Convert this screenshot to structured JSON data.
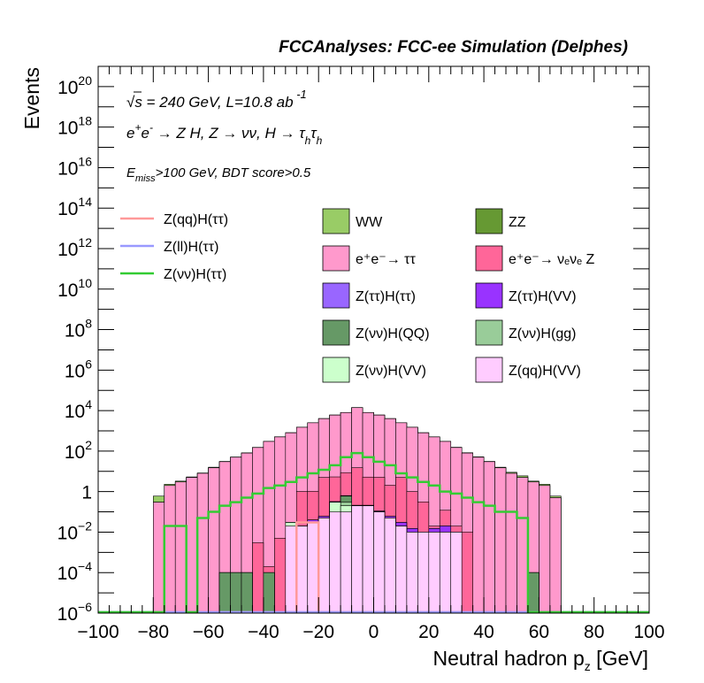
{
  "header": {
    "title": "FCCAnalyses: FCC-ee Simulation (Delphes)"
  },
  "chart_data": {
    "type": "histogram",
    "title": "FCCAnalyses: FCC-ee Simulation (Delphes)",
    "xlabel": "Neutral hadron p_z [GeV]",
    "ylabel": "Events",
    "xlim": [
      -100,
      100
    ],
    "ylim": [
      1e-06,
      1e+21
    ],
    "ylog": true,
    "grid": false,
    "legend_position": "top",
    "x_ticks": [
      "−100",
      "−80",
      "−60",
      "−40",
      "−20",
      "0",
      "20",
      "40",
      "60",
      "80",
      "100"
    ],
    "y_ticks": [
      {
        "base": "10",
        "exp": "−6",
        "v": 1e-06
      },
      {
        "base": "10",
        "exp": "−4",
        "v": 0.0001
      },
      {
        "base": "10",
        "exp": "−2",
        "v": 0.01
      },
      {
        "base": "1",
        "exp": "",
        "v": 1
      },
      {
        "base": "10",
        "exp": "2",
        "v": 100.0
      },
      {
        "base": "10",
        "exp": "4",
        "v": 10000.0
      },
      {
        "base": "10",
        "exp": "6",
        "v": 1000000.0
      },
      {
        "base": "10",
        "exp": "8",
        "v": 100000000.0
      },
      {
        "base": "10",
        "exp": "10",
        "v": 10000000000.0
      },
      {
        "base": "10",
        "exp": "12",
        "v": 1000000000000.0
      },
      {
        "base": "10",
        "exp": "14",
        "v": 100000000000000.0
      },
      {
        "base": "10",
        "exp": "16",
        "v": 1e+16
      },
      {
        "base": "10",
        "exp": "18",
        "v": 1e+18
      },
      {
        "base": "10",
        "exp": "20",
        "v": 1e+20
      }
    ],
    "annotations": {
      "energy": "√s = 240 GeV, L=10.8 ab⁻¹",
      "process": "e⁺e⁻ → Z H, Z → νν, H → τhτh",
      "cuts": "E_miss>100 GeV, BDT score>0.5"
    },
    "bins": {
      "start": -80,
      "width": 4,
      "count": 37
    },
    "stack": [
      {
        "name": "Z(qq)H(VV)",
        "color": "#ffccff",
        "values": [
          0,
          0,
          0,
          0,
          0,
          0,
          0,
          0,
          0,
          0,
          0,
          0,
          0.02,
          0.02,
          0.03,
          0.05,
          0.1,
          0.1,
          0.2,
          0.2,
          0.1,
          0.05,
          0.02,
          0.01,
          0.01,
          0.01,
          0.01,
          0.01,
          1e-06,
          0,
          0,
          0,
          0,
          0,
          0,
          0,
          0
        ]
      },
      {
        "name": "Z(νν)H(VV)",
        "color": "#ccffcc",
        "values": [
          0,
          0,
          0,
          0,
          0,
          0,
          0,
          0,
          0,
          0,
          0,
          0,
          0.01,
          0,
          0,
          0,
          0.2,
          0.1,
          0,
          0,
          0,
          0,
          0,
          0,
          0,
          0,
          0,
          0,
          0,
          0,
          0,
          0,
          0,
          0,
          0,
          0,
          0
        ]
      },
      {
        "name": "Z(νν)H(gg)",
        "color": "#99cc99",
        "values": [
          0,
          0,
          0,
          0,
          0,
          0,
          0,
          0,
          0,
          0,
          0,
          0,
          0,
          0,
          0,
          0,
          0,
          0.1,
          0,
          0,
          0,
          0,
          0,
          0,
          0,
          0,
          0,
          0,
          0,
          0,
          0,
          0,
          0,
          0,
          0,
          0,
          0
        ]
      },
      {
        "name": "Z(νν)H(QQ)",
        "color": "#669966",
        "values": [
          0,
          0,
          0,
          0,
          0,
          0,
          0.0001,
          0.0001,
          0.0001,
          0,
          0.0001,
          0,
          0,
          0,
          0,
          0,
          0,
          0.3,
          0,
          0,
          0,
          0,
          0,
          0,
          0,
          0,
          0,
          0,
          0,
          0,
          0,
          0,
          0,
          0,
          0.0001,
          0,
          0
        ]
      },
      {
        "name": "Z(ττ)H(VV)",
        "color": "#9933ff",
        "values": [
          0,
          0,
          0,
          0,
          0,
          0,
          0,
          0,
          0,
          0,
          0,
          0,
          0,
          0,
          0.01,
          0.01,
          0.02,
          0.03,
          0.01,
          0.01,
          0.01,
          0.01,
          0.01,
          0.005,
          0,
          0.005,
          0.01,
          0,
          0,
          0,
          0,
          0,
          0,
          0,
          0,
          0,
          0
        ]
      },
      {
        "name": "Z(ττ)H(ττ)",
        "color": "#9966ff",
        "values": [
          0,
          0,
          0,
          0,
          0,
          0,
          0,
          0,
          0,
          0,
          0,
          0,
          0,
          0,
          0,
          0,
          0,
          0,
          0,
          0,
          0,
          0,
          0,
          0,
          0,
          0,
          0,
          0,
          0,
          0,
          0,
          0,
          0,
          0,
          0,
          0,
          0
        ]
      },
      {
        "name": "e⁺e⁻→ νₑνₑ Z",
        "color": "#ff6699",
        "values": [
          0,
          0,
          0,
          0,
          0,
          0,
          0,
          0,
          0,
          0.003,
          0.0001,
          0.005,
          0,
          1,
          1,
          5,
          5,
          8,
          15,
          5,
          5,
          2,
          5,
          1,
          0.3,
          0.005,
          0.1,
          0.01,
          0.01,
          0,
          0,
          0,
          0,
          0,
          0,
          0,
          0
        ]
      },
      {
        "name": "e⁺e⁻→ ττ",
        "color": "#ff99cc",
        "values": [
          0.3,
          2,
          3,
          5,
          8,
          15,
          30,
          50,
          80,
          150,
          300,
          500,
          800,
          1500,
          2500,
          4000,
          6000,
          8000,
          14000,
          8000,
          6000,
          4000,
          2500,
          1500,
          800,
          500,
          300,
          150,
          80,
          50,
          30,
          15,
          8,
          5,
          3,
          2,
          0.5
        ]
      },
      {
        "name": "ZZ",
        "color": "#669933",
        "values": [
          0,
          0,
          0,
          0,
          0.0001,
          0.0001,
          0.001,
          0.03,
          0.1,
          0.3,
          0.5,
          2,
          4,
          6,
          8,
          10,
          12,
          15,
          10,
          12,
          6,
          5,
          3,
          2,
          1,
          0.3,
          0.1,
          0,
          0,
          0,
          0,
          0,
          0,
          0.0001,
          0,
          0,
          0
        ]
      },
      {
        "name": "WW",
        "color": "#99cc66",
        "values": [
          0.3,
          0.3,
          0.3,
          0.3,
          0.3,
          1,
          1,
          1,
          2,
          3,
          5,
          8,
          8,
          15,
          20,
          30,
          40,
          70,
          100,
          70,
          50,
          35,
          20,
          15,
          10,
          8,
          5,
          5,
          3,
          2,
          1,
          1,
          1,
          1,
          0.3,
          0.3,
          0.1
        ]
      }
    ],
    "legend": [
      {
        "name": "WW",
        "color": "#99cc66"
      },
      {
        "name": "ZZ",
        "color": "#669933"
      },
      {
        "name": "e⁺e⁻→ ττ",
        "color": "#ff99cc"
      },
      {
        "name": "e⁺e⁻→ νₑνₑ Z",
        "color": "#ff6699"
      },
      {
        "name": "Z(ττ)H(ττ)",
        "color": "#9966ff"
      },
      {
        "name": "Z(ττ)H(VV)",
        "color": "#9933ff"
      },
      {
        "name": "Z(νν)H(QQ)",
        "color": "#669966"
      },
      {
        "name": "Z(νν)H(gg)",
        "color": "#99cc99"
      },
      {
        "name": "Z(νν)H(VV)",
        "color": "#ccffcc"
      },
      {
        "name": "Z(qq)H(VV)",
        "color": "#ffccff"
      }
    ],
    "signals": [
      {
        "name": "Z(qq)H(ττ)",
        "color": "#ff9999",
        "values": [
          0,
          0,
          0,
          0,
          0,
          0,
          0,
          0,
          0,
          0,
          0,
          0,
          0,
          0.03,
          0.03,
          0,
          0,
          0,
          0,
          0,
          0,
          0,
          0,
          0,
          0,
          0,
          0,
          0,
          0,
          0,
          0,
          0,
          0,
          0,
          0,
          0,
          0
        ]
      },
      {
        "name": "Z(ll)H(ττ)",
        "color": "#9999ff",
        "values": [
          0,
          0,
          0,
          0,
          0,
          0,
          0,
          0,
          0,
          0,
          0,
          0,
          0,
          0,
          0,
          0,
          0,
          0,
          0,
          0,
          0,
          0,
          0,
          0,
          0,
          0,
          0,
          0,
          0,
          0,
          0,
          0,
          0,
          0,
          0,
          0,
          0
        ]
      },
      {
        "name": "Z(νν)H(ττ)",
        "color": "#33cc33",
        "values": [
          0,
          0.02,
          0.02,
          0,
          0.05,
          0.1,
          0.2,
          0.3,
          0.5,
          0.8,
          1.5,
          2,
          3,
          5,
          8,
          12,
          20,
          50,
          80,
          50,
          30,
          20,
          8,
          5,
          3,
          2,
          1,
          0.8,
          0.5,
          0.3,
          0.2,
          0.1,
          0.1,
          0.05,
          0,
          0,
          0
        ]
      }
    ]
  }
}
